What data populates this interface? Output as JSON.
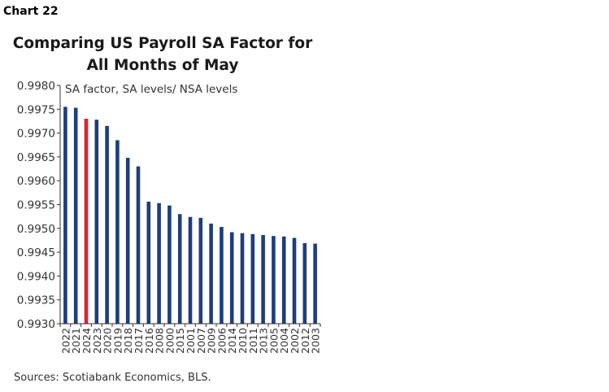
{
  "header": {
    "chart_label": "Chart 22",
    "title_line1": "Comparing US Payroll SA Factor for",
    "title_line2": "All Months of May"
  },
  "source": "Sources: Scotiabank Economics, BLS.",
  "colors": {
    "bar": "#1f3d7a",
    "highlight": "#e0202f",
    "axis": "#333333"
  },
  "chart_data": {
    "type": "bar",
    "title": "Comparing US Payroll SA Factor for All Months of May",
    "annotation": "SA factor, SA levels/ NSA levels",
    "categories": [
      "2022",
      "2021",
      "2024",
      "2023",
      "2020",
      "2019",
      "2018",
      "2017",
      "2016",
      "2008",
      "2000",
      "2015",
      "2001",
      "2007",
      "2009",
      "2006",
      "2014",
      "2010",
      "2011",
      "2013",
      "2005",
      "2004",
      "2002",
      "2012",
      "2003"
    ],
    "values": [
      0.99755,
      0.99753,
      0.9973,
      0.99728,
      0.99715,
      0.99685,
      0.99648,
      0.9963,
      0.99556,
      0.99553,
      0.99548,
      0.9953,
      0.99524,
      0.99522,
      0.9951,
      0.99503,
      0.99492,
      0.9949,
      0.99488,
      0.99486,
      0.99484,
      0.99483,
      0.9948,
      0.99469,
      0.99468
    ],
    "highlight_category": "2024",
    "ylim": [
      0.993,
      0.998
    ],
    "yticks": [
      "0.9930",
      "0.9935",
      "0.9940",
      "0.9945",
      "0.9950",
      "0.9955",
      "0.9960",
      "0.9965",
      "0.9970",
      "0.9975",
      "0.9980"
    ],
    "xlabel": "",
    "ylabel": "",
    "grid": false,
    "legend": "none"
  }
}
